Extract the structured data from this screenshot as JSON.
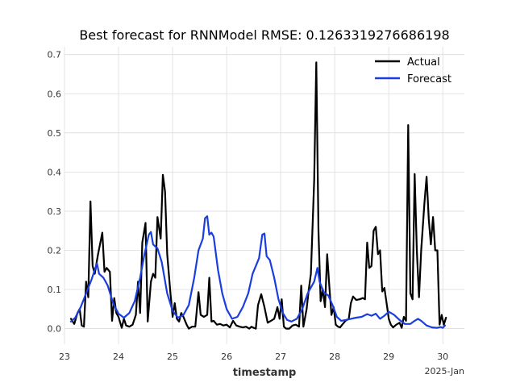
{
  "chart_data": {
    "type": "line",
    "title": "Best forecast for RNNModel RMSE: 0.1263319276686198",
    "xlabel": "timestamp",
    "ylabel": "",
    "x_offset_label": "2025-Jan",
    "xlim": [
      23.0,
      30.4
    ],
    "ylim": [
      -0.04,
      0.72
    ],
    "x_ticks": [
      23,
      24,
      25,
      26,
      27,
      28,
      29,
      30
    ],
    "x_tick_labels": [
      "23",
      "24",
      "25",
      "26",
      "27",
      "28",
      "29",
      "30"
    ],
    "y_ticks": [
      0.0,
      0.1,
      0.2,
      0.3,
      0.4,
      0.5,
      0.6,
      0.7
    ],
    "y_tick_labels": [
      "0.0",
      "0.1",
      "0.2",
      "0.3",
      "0.4",
      "0.5",
      "0.6",
      "0.7"
    ],
    "grid": true,
    "legend_position": "top-right",
    "series": [
      {
        "name": "Actual",
        "color": "#000000",
        "points": [
          [
            23.12,
            0.025
          ],
          [
            23.18,
            0.012
          ],
          [
            23.24,
            0.04
          ],
          [
            23.28,
            0.05
          ],
          [
            23.32,
            0.008
          ],
          [
            23.36,
            0.005
          ],
          [
            23.4,
            0.12
          ],
          [
            23.44,
            0.08
          ],
          [
            23.48,
            0.325
          ],
          [
            23.52,
            0.16
          ],
          [
            23.56,
            0.14
          ],
          [
            23.62,
            0.19
          ],
          [
            23.7,
            0.245
          ],
          [
            23.74,
            0.145
          ],
          [
            23.78,
            0.155
          ],
          [
            23.84,
            0.145
          ],
          [
            23.88,
            0.02
          ],
          [
            23.92,
            0.078
          ],
          [
            23.96,
            0.04
          ],
          [
            24.0,
            0.03
          ],
          [
            24.06,
            0.002
          ],
          [
            24.1,
            0.025
          ],
          [
            24.14,
            0.008
          ],
          [
            24.2,
            0.005
          ],
          [
            24.26,
            0.01
          ],
          [
            24.32,
            0.035
          ],
          [
            24.36,
            0.12
          ],
          [
            24.4,
            0.04
          ],
          [
            24.44,
            0.22
          ],
          [
            24.5,
            0.27
          ],
          [
            24.54,
            0.018
          ],
          [
            24.6,
            0.12
          ],
          [
            24.64,
            0.14
          ],
          [
            24.68,
            0.13
          ],
          [
            24.72,
            0.285
          ],
          [
            24.78,
            0.23
          ],
          [
            24.82,
            0.393
          ],
          [
            24.86,
            0.35
          ],
          [
            24.9,
            0.19
          ],
          [
            24.96,
            0.09
          ],
          [
            25.0,
            0.03
          ],
          [
            25.04,
            0.065
          ],
          [
            25.08,
            0.025
          ],
          [
            25.12,
            0.018
          ],
          [
            25.16,
            0.04
          ],
          [
            25.2,
            0.03
          ],
          [
            25.26,
            0.01
          ],
          [
            25.3,
            0.0
          ],
          [
            25.36,
            0.005
          ],
          [
            25.42,
            0.005
          ],
          [
            25.48,
            0.093
          ],
          [
            25.52,
            0.035
          ],
          [
            25.58,
            0.03
          ],
          [
            25.64,
            0.035
          ],
          [
            25.68,
            0.13
          ],
          [
            25.72,
            0.018
          ],
          [
            25.76,
            0.02
          ],
          [
            25.82,
            0.01
          ],
          [
            25.88,
            0.012
          ],
          [
            25.94,
            0.008
          ],
          [
            26.0,
            0.01
          ],
          [
            26.06,
            0.003
          ],
          [
            26.12,
            0.02
          ],
          [
            26.18,
            0.008
          ],
          [
            26.24,
            0.005
          ],
          [
            26.3,
            0.003
          ],
          [
            26.36,
            0.005
          ],
          [
            26.42,
            0.0
          ],
          [
            26.46,
            0.005
          ],
          [
            26.5,
            0.002
          ],
          [
            26.54,
            0.0
          ],
          [
            26.58,
            0.06
          ],
          [
            26.64,
            0.088
          ],
          [
            26.7,
            0.055
          ],
          [
            26.76,
            0.015
          ],
          [
            26.82,
            0.02
          ],
          [
            26.88,
            0.025
          ],
          [
            26.94,
            0.055
          ],
          [
            26.98,
            0.025
          ],
          [
            27.02,
            0.075
          ],
          [
            27.06,
            0.005
          ],
          [
            27.1,
            0.0
          ],
          [
            27.16,
            0.0
          ],
          [
            27.22,
            0.008
          ],
          [
            27.28,
            0.01
          ],
          [
            27.34,
            0.005
          ],
          [
            27.38,
            0.11
          ],
          [
            27.42,
            0.005
          ],
          [
            27.48,
            0.05
          ],
          [
            27.52,
            0.1
          ],
          [
            27.56,
            0.14
          ],
          [
            27.62,
            0.38
          ],
          [
            27.66,
            0.68
          ],
          [
            27.7,
            0.25
          ],
          [
            27.74,
            0.07
          ],
          [
            27.78,
            0.1
          ],
          [
            27.82,
            0.055
          ],
          [
            27.86,
            0.19
          ],
          [
            27.9,
            0.11
          ],
          [
            27.94,
            0.035
          ],
          [
            27.98,
            0.055
          ],
          [
            28.02,
            0.01
          ],
          [
            28.06,
            0.005
          ],
          [
            28.1,
            0.003
          ],
          [
            28.14,
            0.01
          ],
          [
            28.2,
            0.02
          ],
          [
            28.26,
            0.025
          ],
          [
            28.3,
            0.065
          ],
          [
            28.34,
            0.082
          ],
          [
            28.4,
            0.073
          ],
          [
            28.46,
            0.075
          ],
          [
            28.52,
            0.078
          ],
          [
            28.56,
            0.075
          ],
          [
            28.6,
            0.22
          ],
          [
            28.64,
            0.155
          ],
          [
            28.68,
            0.16
          ],
          [
            28.72,
            0.25
          ],
          [
            28.76,
            0.26
          ],
          [
            28.8,
            0.19
          ],
          [
            28.84,
            0.2
          ],
          [
            28.88,
            0.095
          ],
          [
            28.92,
            0.104
          ],
          [
            28.96,
            0.065
          ],
          [
            29.0,
            0.025
          ],
          [
            29.04,
            0.01
          ],
          [
            29.08,
            0.003
          ],
          [
            29.14,
            0.01
          ],
          [
            29.2,
            0.015
          ],
          [
            29.24,
            0.002
          ],
          [
            29.28,
            0.03
          ],
          [
            29.32,
            0.02
          ],
          [
            29.36,
            0.52
          ],
          [
            29.4,
            0.09
          ],
          [
            29.44,
            0.075
          ],
          [
            29.48,
            0.395
          ],
          [
            29.52,
            0.2
          ],
          [
            29.56,
            0.08
          ],
          [
            29.6,
            0.2
          ],
          [
            29.66,
            0.32
          ],
          [
            29.7,
            0.388
          ],
          [
            29.74,
            0.28
          ],
          [
            29.78,
            0.215
          ],
          [
            29.82,
            0.285
          ],
          [
            29.86,
            0.2
          ],
          [
            29.9,
            0.2
          ],
          [
            29.94,
            0.01
          ],
          [
            29.98,
            0.035
          ],
          [
            30.02,
            0.01
          ],
          [
            30.06,
            0.028
          ]
        ]
      },
      {
        "name": "Forecast",
        "color": "#1a3de0",
        "points": [
          [
            23.12,
            0.018
          ],
          [
            23.2,
            0.028
          ],
          [
            23.3,
            0.055
          ],
          [
            23.4,
            0.09
          ],
          [
            23.5,
            0.125
          ],
          [
            23.56,
            0.15
          ],
          [
            23.6,
            0.167
          ],
          [
            23.64,
            0.14
          ],
          [
            23.72,
            0.13
          ],
          [
            23.8,
            0.11
          ],
          [
            23.9,
            0.065
          ],
          [
            24.0,
            0.038
          ],
          [
            24.1,
            0.028
          ],
          [
            24.2,
            0.04
          ],
          [
            24.3,
            0.07
          ],
          [
            24.4,
            0.13
          ],
          [
            24.48,
            0.19
          ],
          [
            24.56,
            0.24
          ],
          [
            24.6,
            0.247
          ],
          [
            24.64,
            0.215
          ],
          [
            24.72,
            0.205
          ],
          [
            24.8,
            0.17
          ],
          [
            24.9,
            0.09
          ],
          [
            25.0,
            0.045
          ],
          [
            25.1,
            0.028
          ],
          [
            25.2,
            0.035
          ],
          [
            25.3,
            0.06
          ],
          [
            25.4,
            0.13
          ],
          [
            25.48,
            0.2
          ],
          [
            25.56,
            0.23
          ],
          [
            25.6,
            0.282
          ],
          [
            25.64,
            0.287
          ],
          [
            25.68,
            0.24
          ],
          [
            25.72,
            0.245
          ],
          [
            25.76,
            0.235
          ],
          [
            25.84,
            0.15
          ],
          [
            25.92,
            0.09
          ],
          [
            26.0,
            0.05
          ],
          [
            26.1,
            0.025
          ],
          [
            26.2,
            0.03
          ],
          [
            26.3,
            0.055
          ],
          [
            26.4,
            0.09
          ],
          [
            26.48,
            0.14
          ],
          [
            26.54,
            0.16
          ],
          [
            26.6,
            0.18
          ],
          [
            26.66,
            0.24
          ],
          [
            26.7,
            0.243
          ],
          [
            26.74,
            0.185
          ],
          [
            26.8,
            0.175
          ],
          [
            26.88,
            0.13
          ],
          [
            26.96,
            0.075
          ],
          [
            27.04,
            0.04
          ],
          [
            27.12,
            0.022
          ],
          [
            27.2,
            0.018
          ],
          [
            27.3,
            0.025
          ],
          [
            27.4,
            0.05
          ],
          [
            27.5,
            0.09
          ],
          [
            27.56,
            0.105
          ],
          [
            27.62,
            0.12
          ],
          [
            27.68,
            0.155
          ],
          [
            27.72,
            0.12
          ],
          [
            27.8,
            0.092
          ],
          [
            27.88,
            0.085
          ],
          [
            27.96,
            0.06
          ],
          [
            28.04,
            0.03
          ],
          [
            28.12,
            0.02
          ],
          [
            28.2,
            0.022
          ],
          [
            28.3,
            0.025
          ],
          [
            28.4,
            0.028
          ],
          [
            28.5,
            0.03
          ],
          [
            28.6,
            0.037
          ],
          [
            28.68,
            0.033
          ],
          [
            28.76,
            0.038
          ],
          [
            28.84,
            0.025
          ],
          [
            28.92,
            0.033
          ],
          [
            29.0,
            0.043
          ],
          [
            29.1,
            0.035
          ],
          [
            29.2,
            0.022
          ],
          [
            29.3,
            0.012
          ],
          [
            29.4,
            0.012
          ],
          [
            29.48,
            0.02
          ],
          [
            29.54,
            0.025
          ],
          [
            29.6,
            0.02
          ],
          [
            29.7,
            0.008
          ],
          [
            29.8,
            0.003
          ],
          [
            29.9,
            0.002
          ],
          [
            29.96,
            0.004
          ],
          [
            30.0,
            0.002
          ],
          [
            30.04,
            0.008
          ]
        ]
      }
    ]
  }
}
